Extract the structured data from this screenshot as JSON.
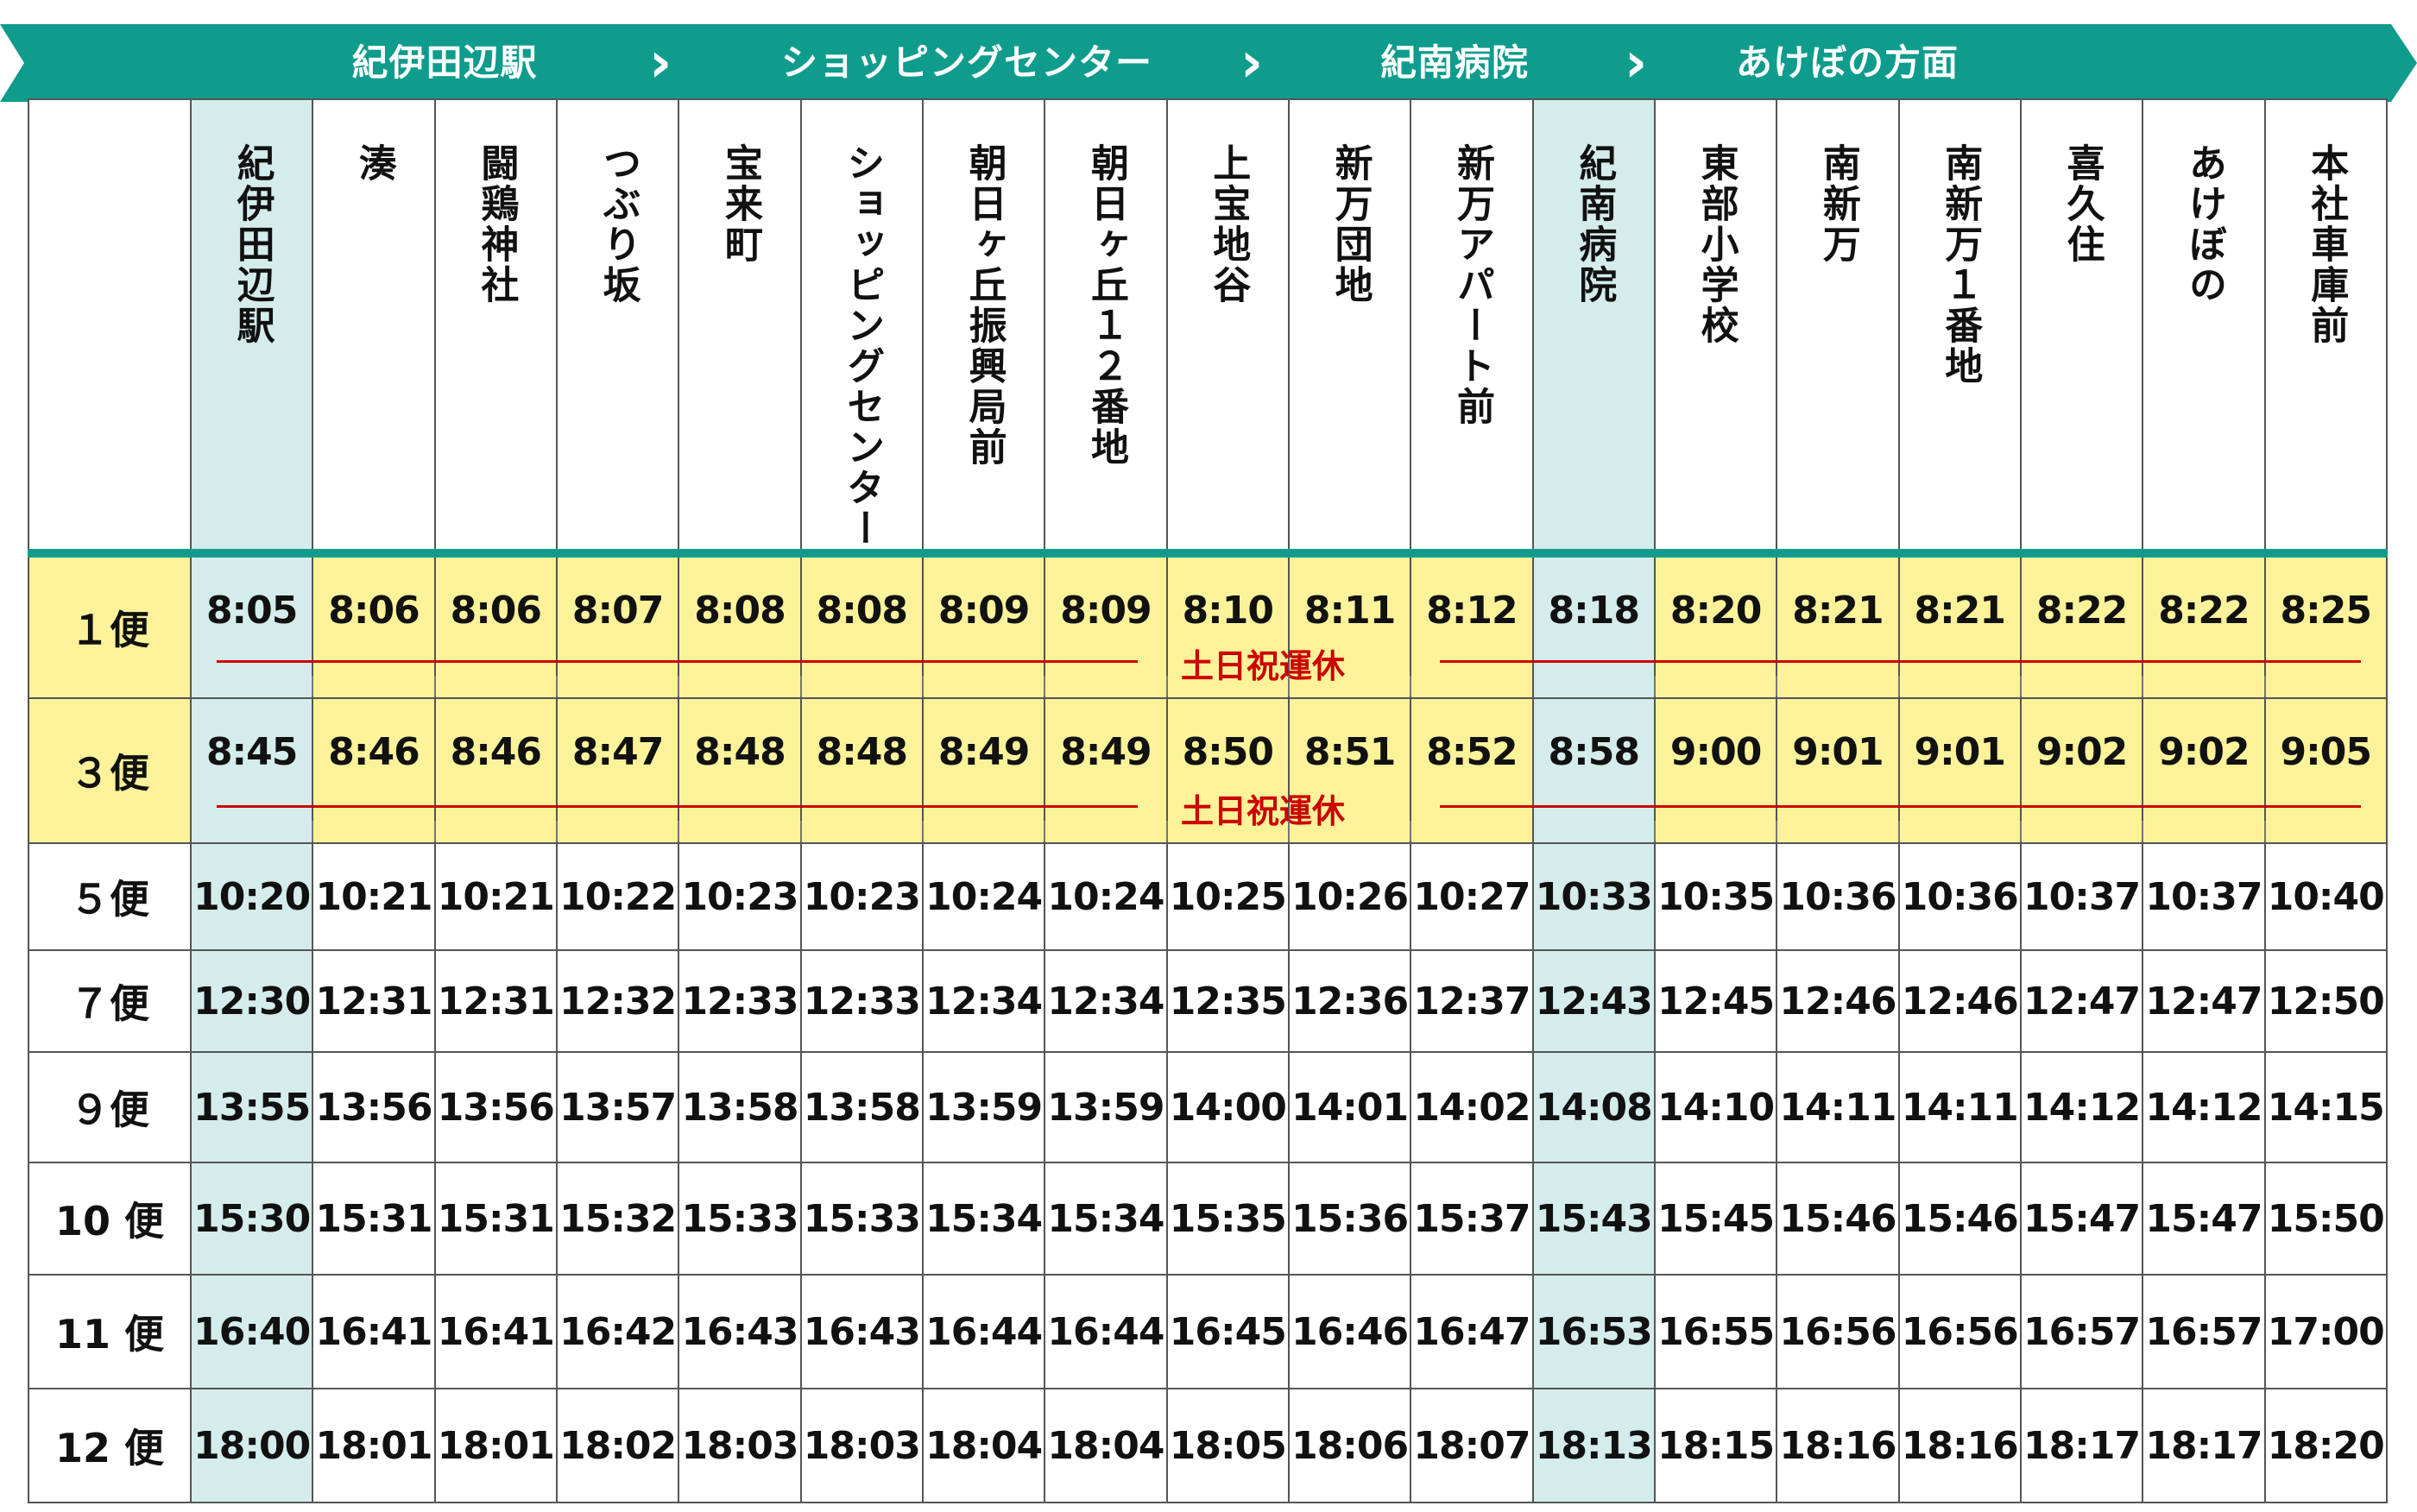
{
  "banner": {
    "color": "#0f9c8c",
    "segments": [
      "紀伊田辺駅",
      "ショッピングセンター",
      "紀南病院",
      "あけぼの方面"
    ],
    "chevron_icon": "chevron-right-icon"
  },
  "stops": [
    "紀伊田辺駅",
    "湊",
    "闘鶏神社",
    "つぶり坂",
    "宝来町",
    "ショッピングセンター",
    "朝日ヶ丘振興局前",
    "朝日ヶ丘１２番地",
    "上宝地谷",
    "新万団地",
    "新万アパート前",
    "紀南病院",
    "東部小学校",
    "南新万",
    "南新万１番地",
    "喜久住",
    "あけぼの",
    "本社車庫前"
  ],
  "highlight_color": "#d4ecec",
  "weekday_only_color": "#fbf29a",
  "suspend_note": "土日祝運休",
  "trips": [
    {
      "label": "１便",
      "weekday_only": true,
      "times": [
        "8:05",
        "8:06",
        "8:06",
        "8:07",
        "8:08",
        "8:08",
        "8:09",
        "8:09",
        "8:10",
        "8:11",
        "8:12",
        "8:18",
        "8:20",
        "8:21",
        "8:21",
        "8:22",
        "8:22",
        "8:25"
      ]
    },
    {
      "label": "３便",
      "weekday_only": true,
      "times": [
        "8:45",
        "8:46",
        "8:46",
        "8:47",
        "8:48",
        "8:48",
        "8:49",
        "8:49",
        "8:50",
        "8:51",
        "8:52",
        "8:58",
        "9:00",
        "9:01",
        "9:01",
        "9:02",
        "9:02",
        "9:05"
      ]
    },
    {
      "label": "５便",
      "weekday_only": false,
      "times": [
        "10:20",
        "10:21",
        "10:21",
        "10:22",
        "10:23",
        "10:23",
        "10:24",
        "10:24",
        "10:25",
        "10:26",
        "10:27",
        "10:33",
        "10:35",
        "10:36",
        "10:36",
        "10:37",
        "10:37",
        "10:40"
      ]
    },
    {
      "label": "７便",
      "weekday_only": false,
      "times": [
        "12:30",
        "12:31",
        "12:31",
        "12:32",
        "12:33",
        "12:33",
        "12:34",
        "12:34",
        "12:35",
        "12:36",
        "12:37",
        "12:43",
        "12:45",
        "12:46",
        "12:46",
        "12:47",
        "12:47",
        "12:50"
      ]
    },
    {
      "label": "９便",
      "weekday_only": false,
      "times": [
        "13:55",
        "13:56",
        "13:56",
        "13:57",
        "13:58",
        "13:58",
        "13:59",
        "13:59",
        "14:00",
        "14:01",
        "14:02",
        "14:08",
        "14:10",
        "14:11",
        "14:11",
        "14:12",
        "14:12",
        "14:15"
      ]
    },
    {
      "label": "10 便",
      "weekday_only": false,
      "times": [
        "15:30",
        "15:31",
        "15:31",
        "15:32",
        "15:33",
        "15:33",
        "15:34",
        "15:34",
        "15:35",
        "15:36",
        "15:37",
        "15:43",
        "15:45",
        "15:46",
        "15:46",
        "15:47",
        "15:47",
        "15:50"
      ]
    },
    {
      "label": "11 便",
      "weekday_only": false,
      "times": [
        "16:40",
        "16:41",
        "16:41",
        "16:42",
        "16:43",
        "16:43",
        "16:44",
        "16:44",
        "16:45",
        "16:46",
        "16:47",
        "16:53",
        "16:55",
        "16:56",
        "16:56",
        "16:57",
        "16:57",
        "17:00"
      ]
    },
    {
      "label": "12 便",
      "weekday_only": false,
      "times": [
        "18:00",
        "18:01",
        "18:01",
        "18:02",
        "18:03",
        "18:03",
        "18:04",
        "18:04",
        "18:05",
        "18:06",
        "18:07",
        "18:13",
        "18:15",
        "18:16",
        "18:16",
        "18:17",
        "18:17",
        "18:20"
      ]
    }
  ]
}
